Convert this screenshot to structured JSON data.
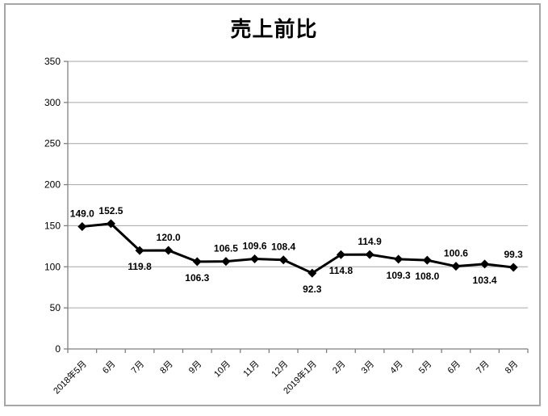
{
  "window": {
    "background_color": "#ffffff",
    "frame_border_color": "#a6a6a6"
  },
  "chart_data": {
    "type": "line",
    "title": "売上前比",
    "xlabel": "",
    "ylabel": "",
    "categories": [
      "2018年5月",
      "6月",
      "7月",
      "8月",
      "9月",
      "10月",
      "11月",
      "12月",
      "2019年1月",
      "2月",
      "3月",
      "4月",
      "5月",
      "6月",
      "7月",
      "8月"
    ],
    "values": [
      149.0,
      152.5,
      119.8,
      120.0,
      106.3,
      106.5,
      109.6,
      108.4,
      92.3,
      114.8,
      114.9,
      109.3,
      108.0,
      100.6,
      103.4,
      99.3
    ],
    "data_labels": [
      "149.0",
      "152.5",
      "119.8",
      "120.0",
      "106.3",
      "106.5",
      "109.6",
      "108.4",
      "92.3",
      "114.8",
      "114.9",
      "109.3",
      "108.0",
      "100.6",
      "103.4",
      "99.3"
    ],
    "data_label_positions": [
      "above",
      "above",
      "below",
      "above",
      "below",
      "above",
      "above",
      "above",
      "below",
      "below",
      "above",
      "below",
      "below",
      "above",
      "below",
      "above"
    ],
    "ylim": [
      0,
      350
    ],
    "yticks": [
      0,
      50,
      100,
      150,
      200,
      250,
      300,
      350
    ],
    "grid": true,
    "legend": "none",
    "x_label_rotation_deg": 45,
    "line_color": "#000000",
    "marker": "diamond",
    "marker_color": "#000000",
    "gridline_color": "#a6a6a6",
    "axis_color": "#7f7f7f",
    "text_color": "#000000"
  }
}
